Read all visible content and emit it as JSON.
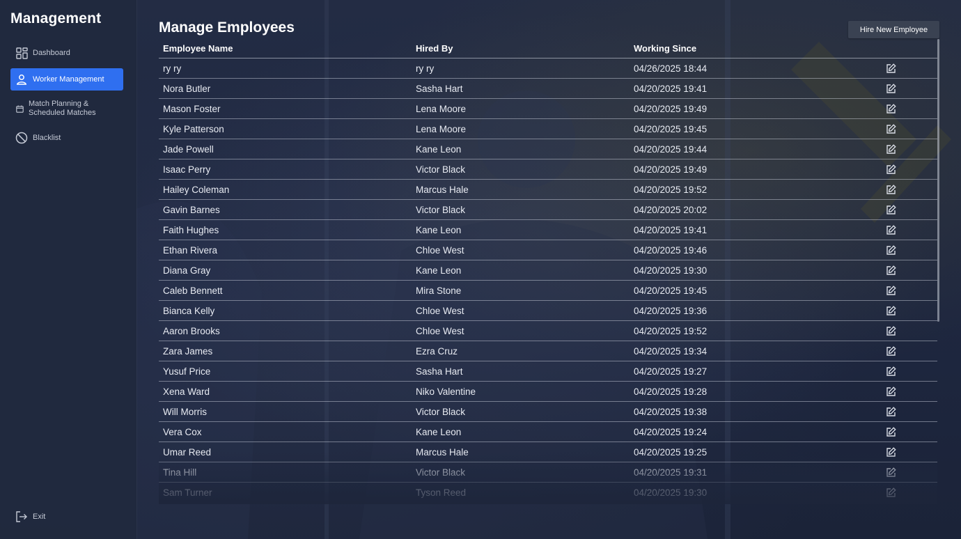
{
  "sidebar": {
    "brand": "Management",
    "items": [
      {
        "label": "Dashboard",
        "icon": "dashboard-grid-icon",
        "active": false
      },
      {
        "label": "Worker Management",
        "icon": "user-icon",
        "active": true
      },
      {
        "label_line1": "Match Planning &",
        "label_line2": "Scheduled Matches",
        "icon": "calendar-icon",
        "active": false
      },
      {
        "label": "Blacklist",
        "icon": "ban-icon",
        "active": false
      }
    ],
    "exit_label": "Exit",
    "exit_icon": "exit-icon"
  },
  "main": {
    "title": "Manage Employees",
    "hire_button_label": "Hire New Employee",
    "table": {
      "columns": [
        "Employee Name",
        "Hired By",
        "Working Since"
      ],
      "edit_icon": "edit-icon",
      "rows": [
        {
          "name": "ry ry",
          "hired_by": "ry ry",
          "since": "04/26/2025 18:44"
        },
        {
          "name": "Nora Butler",
          "hired_by": "Sasha Hart",
          "since": "04/20/2025 19:41"
        },
        {
          "name": "Mason Foster",
          "hired_by": "Lena Moore",
          "since": "04/20/2025 19:49"
        },
        {
          "name": "Kyle Patterson",
          "hired_by": "Lena Moore",
          "since": "04/20/2025 19:45"
        },
        {
          "name": "Jade Powell",
          "hired_by": "Kane Leon",
          "since": "04/20/2025 19:44"
        },
        {
          "name": "Isaac Perry",
          "hired_by": "Victor Black",
          "since": "04/20/2025 19:49"
        },
        {
          "name": "Hailey Coleman",
          "hired_by": "Marcus Hale",
          "since": "04/20/2025 19:52"
        },
        {
          "name": "Gavin Barnes",
          "hired_by": "Victor Black",
          "since": "04/20/2025 20:02"
        },
        {
          "name": "Faith Hughes",
          "hired_by": "Kane Leon",
          "since": "04/20/2025 19:41"
        },
        {
          "name": "Ethan Rivera",
          "hired_by": "Chloe West",
          "since": "04/20/2025 19:46"
        },
        {
          "name": "Diana Gray",
          "hired_by": "Kane Leon",
          "since": "04/20/2025 19:30"
        },
        {
          "name": "Caleb Bennett",
          "hired_by": "Mira Stone",
          "since": "04/20/2025 19:45"
        },
        {
          "name": "Bianca Kelly",
          "hired_by": "Chloe West",
          "since": "04/20/2025 19:36"
        },
        {
          "name": "Aaron Brooks",
          "hired_by": "Chloe West",
          "since": "04/20/2025 19:52"
        },
        {
          "name": "Zara James",
          "hired_by": "Ezra Cruz",
          "since": "04/20/2025 19:34"
        },
        {
          "name": "Yusuf Price",
          "hired_by": "Sasha Hart",
          "since": "04/20/2025 19:27"
        },
        {
          "name": "Xena Ward",
          "hired_by": "Niko Valentine",
          "since": "04/20/2025 19:28"
        },
        {
          "name": "Will Morris",
          "hired_by": "Victor Black",
          "since": "04/20/2025 19:38"
        },
        {
          "name": "Vera Cox",
          "hired_by": "Kane Leon",
          "since": "04/20/2025 19:24"
        },
        {
          "name": "Umar Reed",
          "hired_by": "Marcus Hale",
          "since": "04/20/2025 19:25"
        },
        {
          "name": "Tina Hill",
          "hired_by": "Victor Black",
          "since": "04/20/2025 19:31"
        },
        {
          "name": "Sam Turner",
          "hired_by": "Tyson Reed",
          "since": "04/20/2025 19:30"
        }
      ]
    }
  },
  "colors": {
    "accent": "#2f6ff0",
    "sidebar_bg": "#21293e",
    "page_bg": "#1e2740",
    "button_bg": "#3a4252"
  }
}
